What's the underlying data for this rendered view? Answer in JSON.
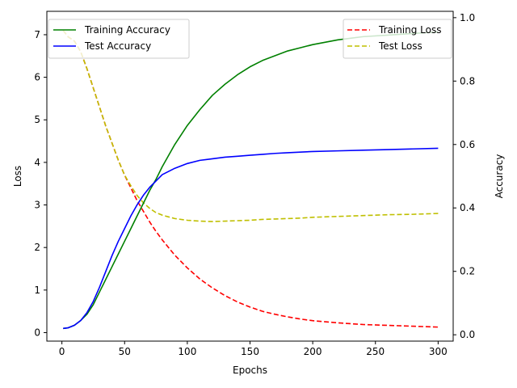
{
  "chart_data": {
    "type": "line",
    "xlabel": "Epochs",
    "ylabel_left": "Loss",
    "ylabel_right": "Accuracy",
    "xlim": [
      -12,
      312
    ],
    "ylim_left": [
      -0.2,
      7.55
    ],
    "ylim_right": [
      -0.02,
      1.02
    ],
    "x_ticks": [
      0,
      50,
      100,
      150,
      200,
      250,
      300
    ],
    "y_ticks_left": [
      0,
      1,
      2,
      3,
      4,
      5,
      6,
      7
    ],
    "y_ticks_right": [
      0.0,
      0.2,
      0.4,
      0.6,
      0.8,
      1.0
    ],
    "grid": false,
    "legend_left_placement": "top-left",
    "legend_right_placement": "top-right",
    "series": [
      {
        "name": "Training Accuracy",
        "axis": "right",
        "color": "#008000",
        "dash": "solid",
        "x": [
          1,
          5,
          10,
          15,
          20,
          25,
          30,
          35,
          40,
          45,
          50,
          55,
          60,
          65,
          70,
          75,
          80,
          90,
          100,
          110,
          120,
          130,
          140,
          150,
          160,
          170,
          180,
          190,
          200,
          220,
          240,
          260,
          280,
          300
        ],
        "y": [
          0.02,
          0.022,
          0.03,
          0.045,
          0.065,
          0.095,
          0.135,
          0.175,
          0.215,
          0.255,
          0.295,
          0.335,
          0.375,
          0.415,
          0.455,
          0.49,
          0.53,
          0.6,
          0.66,
          0.71,
          0.755,
          0.79,
          0.82,
          0.845,
          0.865,
          0.88,
          0.895,
          0.905,
          0.915,
          0.93,
          0.94,
          0.945,
          0.95,
          0.955
        ]
      },
      {
        "name": "Test Accuracy",
        "axis": "right",
        "color": "#0000ff",
        "dash": "solid",
        "x": [
          1,
          5,
          10,
          15,
          20,
          25,
          30,
          35,
          40,
          45,
          50,
          55,
          60,
          65,
          70,
          75,
          80,
          90,
          100,
          110,
          120,
          130,
          140,
          150,
          160,
          170,
          180,
          190,
          200,
          220,
          240,
          260,
          280,
          300
        ],
        "y": [
          0.02,
          0.022,
          0.03,
          0.045,
          0.07,
          0.105,
          0.15,
          0.2,
          0.25,
          0.295,
          0.335,
          0.375,
          0.41,
          0.44,
          0.465,
          0.485,
          0.505,
          0.525,
          0.54,
          0.55,
          0.555,
          0.56,
          0.563,
          0.566,
          0.569,
          0.572,
          0.574,
          0.576,
          0.578,
          0.58,
          0.582,
          0.584,
          0.586,
          0.588
        ]
      },
      {
        "name": "Training Loss",
        "axis": "left",
        "color": "#ff0000",
        "dash": "dashed",
        "x": [
          1,
          5,
          10,
          15,
          20,
          25,
          30,
          35,
          40,
          45,
          50,
          55,
          60,
          65,
          70,
          75,
          80,
          90,
          100,
          110,
          120,
          130,
          140,
          150,
          160,
          170,
          180,
          190,
          200,
          220,
          240,
          260,
          280,
          300
        ],
        "y": [
          7.1,
          6.95,
          6.85,
          6.6,
          6.2,
          5.75,
          5.3,
          4.85,
          4.45,
          4.05,
          3.7,
          3.4,
          3.1,
          2.85,
          2.6,
          2.38,
          2.18,
          1.82,
          1.52,
          1.26,
          1.05,
          0.87,
          0.72,
          0.6,
          0.5,
          0.43,
          0.37,
          0.32,
          0.28,
          0.23,
          0.19,
          0.17,
          0.15,
          0.13
        ]
      },
      {
        "name": "Test Loss",
        "axis": "left",
        "color": "#bfbf00",
        "dash": "dashed",
        "x": [
          1,
          5,
          10,
          15,
          20,
          25,
          30,
          35,
          40,
          45,
          50,
          55,
          60,
          65,
          70,
          75,
          80,
          90,
          100,
          110,
          120,
          130,
          140,
          150,
          160,
          170,
          180,
          190,
          200,
          220,
          240,
          260,
          280,
          300
        ],
        "y": [
          7.1,
          6.95,
          6.85,
          6.6,
          6.2,
          5.75,
          5.3,
          4.85,
          4.45,
          4.05,
          3.7,
          3.45,
          3.22,
          3.05,
          2.92,
          2.82,
          2.76,
          2.68,
          2.64,
          2.62,
          2.61,
          2.62,
          2.63,
          2.64,
          2.66,
          2.67,
          2.68,
          2.69,
          2.71,
          2.73,
          2.75,
          2.77,
          2.78,
          2.8
        ]
      }
    ]
  }
}
